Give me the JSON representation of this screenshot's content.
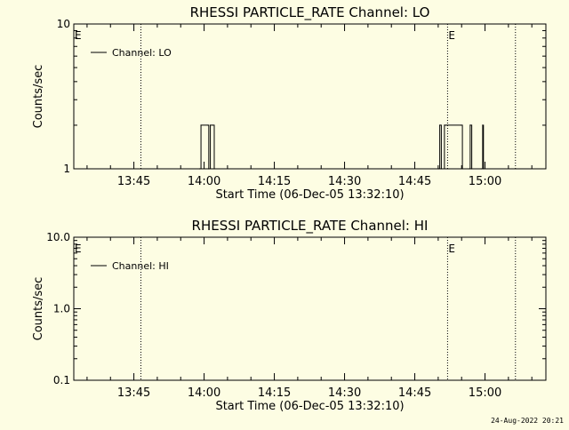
{
  "chart_data": [
    {
      "type": "line",
      "title": "RHESSI PARTICLE_RATE Channel: LO",
      "xlabel": "Start Time (06-Dec-05 13:32:10)",
      "ylabel": "Counts/sec",
      "y_scale": "log",
      "ylim": [
        1,
        10
      ],
      "y_ticks": [
        {
          "value": 1,
          "label": "1"
        },
        {
          "value": 10,
          "label": "10"
        }
      ],
      "xlim": [
        "13:32:10",
        "15:13:00"
      ],
      "x_ticks": [
        "13:45",
        "14:00",
        "14:15",
        "14:30",
        "14:45",
        "15:00"
      ],
      "grid": false,
      "legend": "top-left",
      "series": [
        {
          "name": "Channel: LO",
          "x": [
            "13:59:00",
            "13:59:20",
            "14:00:50",
            "14:01:00",
            "14:01:20",
            "14:01:50",
            "14:02:10",
            "14:50:10",
            "14:50:20",
            "14:50:40",
            "14:51:20",
            "14:51:40",
            "14:54:50",
            "14:55:10",
            "14:56:40",
            "14:56:50",
            "14:57:10",
            "14:59:10",
            "14:59:30",
            "14:59:40"
          ],
          "y": [
            1,
            2,
            2,
            1,
            2,
            2,
            1,
            1,
            2,
            1,
            2,
            2,
            2,
            1,
            1,
            2,
            1,
            1,
            2,
            1
          ]
        }
      ],
      "markers": [
        {
          "x": "13:46:30",
          "label": ""
        },
        {
          "x": "14:52:00",
          "label": "E"
        },
        {
          "x": "15:06:30",
          "label": ""
        }
      ],
      "edge_label": "E"
    },
    {
      "type": "line",
      "title": "RHESSI PARTICLE_RATE Channel: HI",
      "xlabel": "Start Time (06-Dec-05 13:32:10)",
      "ylabel": "Counts/sec",
      "y_scale": "log",
      "ylim": [
        0.1,
        10
      ],
      "y_ticks": [
        {
          "value": 0.1,
          "label": "0.1"
        },
        {
          "value": 1,
          "label": "1.0"
        },
        {
          "value": 10,
          "label": "10.0"
        }
      ],
      "xlim": [
        "13:32:10",
        "15:13:00"
      ],
      "x_ticks": [
        "13:45",
        "14:00",
        "14:15",
        "14:30",
        "14:45",
        "15:00"
      ],
      "grid": false,
      "legend": "top-left",
      "series": [
        {
          "name": "Channel: HI",
          "x": [],
          "y": []
        }
      ],
      "markers": [
        {
          "x": "13:46:30",
          "label": ""
        },
        {
          "x": "14:52:00",
          "label": "E"
        },
        {
          "x": "15:06:30",
          "label": ""
        }
      ],
      "edge_label": "E"
    }
  ],
  "timestamp": "24-Aug-2022 20:21",
  "colors": {
    "background": "#fdfde3",
    "foreground": "#000000"
  }
}
